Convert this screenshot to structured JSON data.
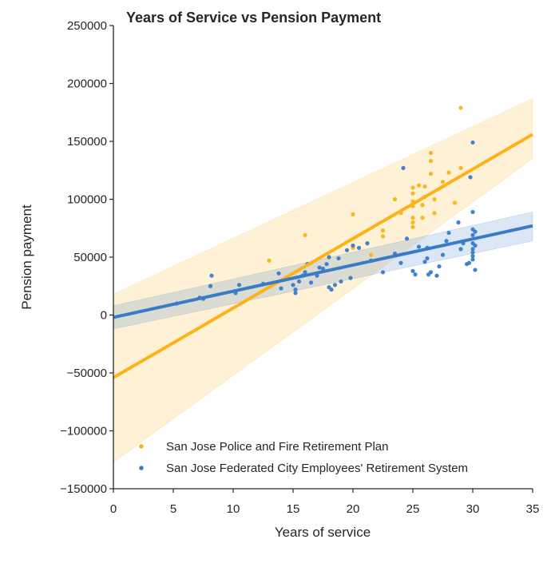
{
  "chart_data": {
    "type": "scatter",
    "title": "Years of Service vs Pension Payment",
    "xlabel": "Years of service",
    "ylabel": "Pension payment",
    "xlim": [
      0,
      35
    ],
    "ylim": [
      -150000,
      250000
    ],
    "xticks": [
      0,
      5,
      10,
      15,
      20,
      25,
      30,
      35
    ],
    "yticks": [
      -150000,
      -100000,
      -50000,
      0,
      50000,
      100000,
      150000,
      200000,
      250000
    ],
    "xtick_labels": [
      "0",
      "5",
      "10",
      "15",
      "20",
      "25",
      "30",
      "35"
    ],
    "ytick_labels": [
      "−150000",
      "−100000",
      "−50000",
      "0",
      "50000",
      "100000",
      "150000",
      "200000",
      "250000"
    ],
    "grid": false,
    "legend_position": "bottom-right",
    "series": [
      {
        "name": "San Jose Police and Fire Retirement Plan",
        "color": "#fbb318",
        "points": [
          [
            13,
            47000
          ],
          [
            16,
            69000
          ],
          [
            20,
            87000
          ],
          [
            20,
            58000
          ],
          [
            21.5,
            52000
          ],
          [
            22.5,
            68000
          ],
          [
            22.5,
            73000
          ],
          [
            23.5,
            100000
          ],
          [
            24,
            88000
          ],
          [
            25,
            76000
          ],
          [
            25,
            80000
          ],
          [
            25,
            84000
          ],
          [
            25,
            94000
          ],
          [
            25,
            98000
          ],
          [
            25,
            105000
          ],
          [
            25,
            110000
          ],
          [
            25.5,
            112000
          ],
          [
            25.8,
            84000
          ],
          [
            25.8,
            95000
          ],
          [
            26,
            102000
          ],
          [
            26,
            111000
          ],
          [
            26.5,
            122000
          ],
          [
            26.5,
            133000
          ],
          [
            26.5,
            140000
          ],
          [
            26.8,
            88000
          ],
          [
            26.8,
            100000
          ],
          [
            27.5,
            115000
          ],
          [
            28,
            123000
          ],
          [
            28.5,
            97000
          ],
          [
            29,
            127000
          ],
          [
            29,
            179000
          ]
        ],
        "fit": {
          "start": [
            0,
            -54000
          ],
          "end": [
            35,
            156000
          ],
          "ci_start": [
            -127000,
            18000
          ],
          "ci_end": [
            135000,
            187000
          ]
        }
      },
      {
        "name": "San Jose Federated City Employees' Retirement System",
        "color": "#3a7bc8",
        "points": [
          [
            5.3,
            10000
          ],
          [
            7.2,
            15000
          ],
          [
            7.5,
            14000
          ],
          [
            8.1,
            25000
          ],
          [
            8.2,
            34000
          ],
          [
            10.2,
            19000
          ],
          [
            10.5,
            26000
          ],
          [
            12.5,
            27000
          ],
          [
            13.8,
            36000
          ],
          [
            14,
            23000
          ],
          [
            15,
            26000
          ],
          [
            15.2,
            19000
          ],
          [
            15.2,
            22000
          ],
          [
            15.5,
            29000
          ],
          [
            15.8,
            34000
          ],
          [
            16,
            37000
          ],
          [
            16.2,
            44000
          ],
          [
            16.5,
            28000
          ],
          [
            17,
            34000
          ],
          [
            17.2,
            41000
          ],
          [
            17.5,
            40000
          ],
          [
            17.8,
            44000
          ],
          [
            18,
            24000
          ],
          [
            18,
            50000
          ],
          [
            18.2,
            22000
          ],
          [
            18.5,
            26000
          ],
          [
            18.8,
            49000
          ],
          [
            19,
            29000
          ],
          [
            19.5,
            56000
          ],
          [
            19.8,
            32000
          ],
          [
            20,
            60000
          ],
          [
            20.5,
            58000
          ],
          [
            21.2,
            62000
          ],
          [
            21.5,
            47000
          ],
          [
            22.5,
            37000
          ],
          [
            23.5,
            53000
          ],
          [
            24,
            45000
          ],
          [
            24.2,
            127000
          ],
          [
            24.5,
            66000
          ],
          [
            25,
            38000
          ],
          [
            25.2,
            35000
          ],
          [
            25.5,
            59000
          ],
          [
            26,
            46000
          ],
          [
            26.2,
            49000
          ],
          [
            26.2,
            58000
          ],
          [
            26.3,
            35000
          ],
          [
            26.5,
            37000
          ],
          [
            27,
            34000
          ],
          [
            27.2,
            42000
          ],
          [
            27.5,
            52000
          ],
          [
            27.8,
            64000
          ],
          [
            28,
            71000
          ],
          [
            28.8,
            80000
          ],
          [
            29,
            57000
          ],
          [
            29.2,
            62000
          ],
          [
            29.5,
            44000
          ],
          [
            29.7,
            45000
          ],
          [
            29.8,
            119000
          ],
          [
            30,
            48000
          ],
          [
            30,
            51000
          ],
          [
            30,
            54000
          ],
          [
            30,
            57000
          ],
          [
            30,
            62000
          ],
          [
            30,
            69000
          ],
          [
            30,
            74000
          ],
          [
            30,
            89000
          ],
          [
            30,
            149000
          ],
          [
            30.2,
            39000
          ],
          [
            30.2,
            60000
          ],
          [
            30.2,
            72000
          ]
        ],
        "fit": {
          "start": [
            0,
            -2000
          ],
          "end": [
            35,
            77000
          ],
          "ci_start": [
            -12000,
            8000
          ],
          "ci_end": [
            64000,
            89000
          ]
        }
      }
    ]
  }
}
